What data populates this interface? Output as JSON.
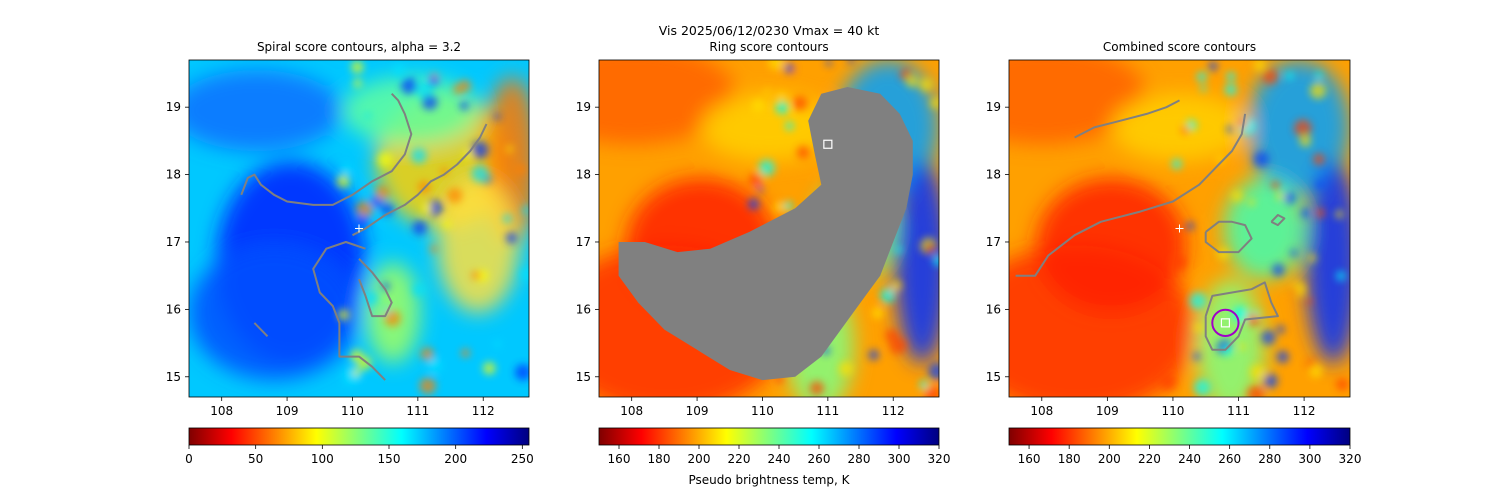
{
  "suptitle": "Vis  2025/06/12/0230    Vmax = 40 kt",
  "colors": {
    "contour": "#808080",
    "ring_fill": "#808080",
    "marker": "#ffffff",
    "circle": "#a000c8",
    "jet": [
      "#00007f",
      "#0000ff",
      "#007fff",
      "#00ffff",
      "#7fff7f",
      "#ffff00",
      "#ff7f00",
      "#ff0000",
      "#7f0000"
    ]
  },
  "chart_data": [
    {
      "type": "heatmap",
      "title": "Spiral score contours, alpha =  3.2",
      "xlim": [
        107.5,
        112.7
      ],
      "ylim": [
        14.7,
        19.7
      ],
      "xticks": [
        "108",
        "109",
        "110",
        "111",
        "112"
      ],
      "yticks": [
        "15",
        "16",
        "17",
        "18",
        "19"
      ],
      "colormap": "jet_reversed",
      "colorbar": {
        "range": [
          0,
          255
        ],
        "ticks": [
          "0",
          "50",
          "100",
          "150",
          "200",
          "250"
        ],
        "label": ""
      },
      "center_marker": {
        "x": 110.1,
        "y": 17.2
      },
      "contours": [
        [
          [
            108.3,
            17.7
          ],
          [
            108.4,
            17.95
          ],
          [
            108.5,
            18.0
          ],
          [
            108.6,
            17.85
          ],
          [
            108.8,
            17.7
          ],
          [
            109.0,
            17.6
          ],
          [
            109.4,
            17.55
          ],
          [
            109.7,
            17.55
          ],
          [
            110.0,
            17.7
          ],
          [
            110.3,
            17.9
          ],
          [
            110.6,
            18.05
          ],
          [
            110.8,
            18.3
          ],
          [
            110.9,
            18.6
          ],
          [
            110.8,
            18.9
          ],
          [
            110.7,
            19.1
          ],
          [
            110.6,
            19.2
          ]
        ],
        [
          [
            110.0,
            17.1
          ],
          [
            110.2,
            17.2
          ],
          [
            110.5,
            17.4
          ],
          [
            110.8,
            17.55
          ],
          [
            111.0,
            17.7
          ],
          [
            111.2,
            17.9
          ],
          [
            111.4,
            18.0
          ],
          [
            111.6,
            18.15
          ],
          [
            111.8,
            18.35
          ],
          [
            111.95,
            18.55
          ],
          [
            112.05,
            18.75
          ]
        ],
        [
          [
            110.2,
            16.9
          ],
          [
            109.9,
            17.0
          ],
          [
            109.6,
            16.9
          ],
          [
            109.4,
            16.6
          ],
          [
            109.5,
            16.25
          ],
          [
            109.7,
            16.05
          ],
          [
            109.8,
            15.8
          ],
          [
            109.8,
            15.5
          ],
          [
            109.8,
            15.3
          ],
          [
            110.1,
            15.3
          ],
          [
            110.3,
            15.15
          ],
          [
            110.5,
            14.95
          ]
        ],
        [
          [
            110.1,
            16.75
          ],
          [
            110.3,
            16.55
          ],
          [
            110.5,
            16.3
          ],
          [
            110.6,
            16.1
          ],
          [
            110.5,
            15.9
          ],
          [
            110.3,
            15.9
          ],
          [
            110.2,
            16.2
          ],
          [
            110.1,
            16.45
          ]
        ],
        [
          [
            108.5,
            15.8
          ],
          [
            108.6,
            15.7
          ],
          [
            108.7,
            15.6
          ]
        ]
      ]
    },
    {
      "type": "heatmap",
      "title": "Ring score contours",
      "xlim": [
        107.5,
        112.7
      ],
      "ylim": [
        14.7,
        19.7
      ],
      "xticks": [
        "108",
        "109",
        "110",
        "111",
        "112"
      ],
      "yticks": [
        "15",
        "16",
        "17",
        "18",
        "19"
      ],
      "colormap": "jet_reversed",
      "colorbar": {
        "range": [
          150,
          320
        ],
        "ticks": [
          "160",
          "180",
          "200",
          "220",
          "240",
          "260",
          "280",
          "300",
          "320"
        ],
        "label": "Pseudo brightness temp, K"
      },
      "max_marker": {
        "x": 111.0,
        "y": 18.45
      },
      "filled_region": [
        [
          109.2,
          16.9
        ],
        [
          109.8,
          17.15
        ],
        [
          110.5,
          17.5
        ],
        [
          110.9,
          17.85
        ],
        [
          110.8,
          18.3
        ],
        [
          110.7,
          18.8
        ],
        [
          110.9,
          19.2
        ],
        [
          111.3,
          19.3
        ],
        [
          111.8,
          19.2
        ],
        [
          112.1,
          18.9
        ],
        [
          112.3,
          18.5
        ],
        [
          112.3,
          18.0
        ],
        [
          112.2,
          17.5
        ],
        [
          112.0,
          17.0
        ],
        [
          111.8,
          16.5
        ],
        [
          111.5,
          16.1
        ],
        [
          111.2,
          15.7
        ],
        [
          110.9,
          15.3
        ],
        [
          110.5,
          15.0
        ],
        [
          110.0,
          14.95
        ],
        [
          109.5,
          15.1
        ],
        [
          109.0,
          15.4
        ],
        [
          108.5,
          15.7
        ],
        [
          108.1,
          16.1
        ],
        [
          107.8,
          16.5
        ],
        [
          107.8,
          17.0
        ],
        [
          108.2,
          17.0
        ],
        [
          108.7,
          16.85
        ]
      ]
    },
    {
      "type": "heatmap",
      "title": "Combined score contours",
      "xlim": [
        107.5,
        112.7
      ],
      "ylim": [
        14.7,
        19.7
      ],
      "xticks": [
        "108",
        "109",
        "110",
        "111",
        "112"
      ],
      "yticks": [
        "15",
        "16",
        "17",
        "18",
        "19"
      ],
      "colormap": "jet_reversed",
      "colorbar": {
        "range": [
          150,
          320
        ],
        "ticks": [
          "160",
          "180",
          "200",
          "220",
          "240",
          "260",
          "280",
          "300",
          "320"
        ],
        "label": ""
      },
      "center_marker": {
        "x": 110.1,
        "y": 17.2
      },
      "best_marker": {
        "x": 110.8,
        "y": 15.8
      },
      "best_circle": {
        "x": 110.8,
        "y": 15.8,
        "r": 0.2
      },
      "contours": [
        [
          [
            108.5,
            18.55
          ],
          [
            108.8,
            18.7
          ],
          [
            109.2,
            18.8
          ],
          [
            109.6,
            18.9
          ],
          [
            109.9,
            19.0
          ],
          [
            110.1,
            19.1
          ]
        ],
        [
          [
            107.6,
            16.5
          ],
          [
            107.9,
            16.5
          ],
          [
            108.1,
            16.8
          ],
          [
            108.5,
            17.1
          ],
          [
            108.9,
            17.3
          ],
          [
            109.5,
            17.45
          ],
          [
            110.0,
            17.6
          ],
          [
            110.4,
            17.85
          ],
          [
            110.7,
            18.15
          ],
          [
            110.9,
            18.35
          ],
          [
            111.05,
            18.6
          ],
          [
            111.1,
            18.9
          ]
        ],
        [
          [
            110.5,
            17.15
          ],
          [
            110.7,
            17.3
          ],
          [
            110.9,
            17.3
          ],
          [
            111.1,
            17.25
          ],
          [
            111.2,
            17.05
          ],
          [
            111.0,
            16.85
          ],
          [
            110.7,
            16.85
          ],
          [
            110.5,
            17.0
          ],
          [
            110.5,
            17.15
          ]
        ],
        [
          [
            110.5,
            15.9
          ],
          [
            110.6,
            16.2
          ],
          [
            110.9,
            16.25
          ],
          [
            111.2,
            16.3
          ],
          [
            111.4,
            16.4
          ],
          [
            111.5,
            16.1
          ],
          [
            111.6,
            15.9
          ],
          [
            111.1,
            15.85
          ],
          [
            111.0,
            15.6
          ],
          [
            110.8,
            15.4
          ],
          [
            110.6,
            15.4
          ],
          [
            110.5,
            15.6
          ],
          [
            110.5,
            15.9
          ]
        ],
        [
          [
            111.5,
            17.3
          ],
          [
            111.6,
            17.4
          ],
          [
            111.7,
            17.35
          ],
          [
            111.6,
            17.25
          ],
          [
            111.5,
            17.3
          ]
        ]
      ]
    }
  ]
}
